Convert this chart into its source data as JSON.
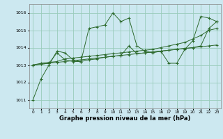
{
  "title": "Graphe pression niveau de la mer (hPa)",
  "bg_color": "#cce8f0",
  "grid_color": "#99ccbb",
  "line_color": "#2d6a2d",
  "xlim": [
    -0.5,
    23.5
  ],
  "ylim": [
    1010.5,
    1016.5
  ],
  "yticks": [
    1011,
    1012,
    1013,
    1014,
    1015,
    1016
  ],
  "xticks": [
    0,
    1,
    2,
    3,
    4,
    5,
    6,
    7,
    8,
    9,
    10,
    11,
    12,
    13,
    14,
    15,
    16,
    17,
    18,
    19,
    20,
    21,
    22,
    23
  ],
  "series": [
    [
      1011.0,
      1012.2,
      1013.0,
      1013.8,
      1013.7,
      1013.3,
      1013.2,
      1015.1,
      1015.2,
      1015.3,
      1016.0,
      1015.5,
      1015.7,
      1014.1,
      1013.8,
      1013.7,
      1013.8,
      1013.1,
      1013.1,
      1013.9,
      1014.4,
      1015.8,
      1015.7,
      1015.5
    ],
    [
      1013.0,
      1013.1,
      1013.15,
      1013.2,
      1013.35,
      1013.4,
      1013.45,
      1013.5,
      1013.55,
      1013.6,
      1013.65,
      1013.7,
      1013.75,
      1013.8,
      1013.85,
      1013.9,
      1014.0,
      1014.1,
      1014.2,
      1014.3,
      1014.5,
      1014.7,
      1015.0,
      1015.1
    ],
    [
      1013.0,
      1013.05,
      1013.1,
      1013.15,
      1013.2,
      1013.25,
      1013.3,
      1013.35,
      1013.4,
      1013.45,
      1013.5,
      1013.55,
      1013.6,
      1013.65,
      1013.7,
      1013.75,
      1013.8,
      1013.85,
      1013.9,
      1013.95,
      1014.0,
      1014.05,
      1014.1,
      1014.15
    ],
    [
      1013.0,
      1013.05,
      1013.1,
      1013.7,
      1013.3,
      1013.2,
      1013.2,
      1013.3,
      1013.35,
      1013.45,
      1013.5,
      1013.55,
      1014.1,
      1013.65,
      1013.7,
      1013.75,
      1013.8,
      1013.85,
      1013.9,
      1013.95,
      1014.0,
      1014.1,
      1015.1,
      1015.5
    ]
  ]
}
